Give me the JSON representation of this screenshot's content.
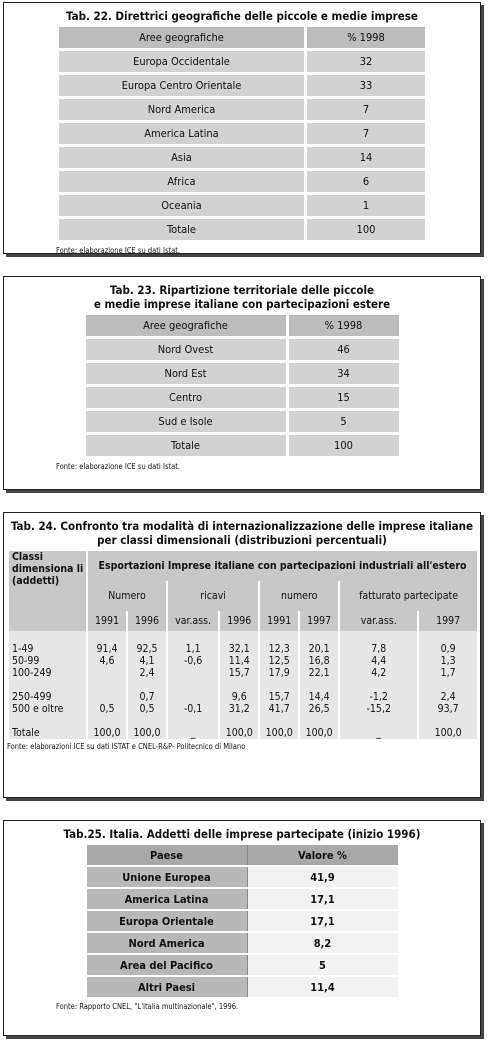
{
  "tab22": {
    "title": "Tab. 22. Direttrici geografiche delle piccole e medie imprese",
    "header": [
      "Aree geografiche",
      "% 1998"
    ],
    "rows": [
      [
        "Europa Occidentale",
        "32"
      ],
      [
        "Europa Centro Orientale",
        "33"
      ],
      [
        "Nord America",
        "7"
      ],
      [
        "America Latina",
        "7"
      ],
      [
        "Asia",
        "14"
      ],
      [
        "Africa",
        "6"
      ],
      [
        "Oceania",
        "1"
      ],
      [
        "Totale",
        "100"
      ]
    ],
    "source": "Fonte: elaborazione ICE su dati Istat."
  },
  "tab23": {
    "title": [
      "Tab. 23. Ripartizione territoriale delle piccole",
      "e medie imprese italiane con partecipazioni estere"
    ],
    "header": [
      "Aree geografiche",
      "% 1998"
    ],
    "rows": [
      [
        "Nord Ovest",
        "46"
      ],
      [
        "Nord Est",
        "34"
      ],
      [
        "Centro",
        "15"
      ],
      [
        "Sud e Isole",
        "5"
      ],
      [
        "Totale",
        "100"
      ]
    ],
    "source": "Fonte: elaborazione ICE su dati Istat."
  },
  "tab24": {
    "title": [
      "Tab. 24. Confronto tra modalità di internazionalizzazione delle imprese italiane",
      "per classi dimensionali (distribuzioni percentuali)"
    ],
    "corner": "Classi dimensiona li (addetti)",
    "group": "Esportazioni Imprese italiane con partecipazioni industriali all'estero",
    "subgroups": [
      "Numero",
      "ricavi",
      "numero",
      "fatturato partecipate"
    ],
    "years": [
      "1991",
      "1996",
      "var.ass.",
      "1996",
      "1991",
      "1997",
      "var.ass.",
      "1997"
    ],
    "rows": [
      [
        "1-49",
        "91,4",
        "92,5",
        "1,1",
        "32,1",
        "12,3",
        "20,1",
        "7,8",
        "0,9"
      ],
      [
        "50-99",
        "4,6",
        "4,1",
        "-0,6",
        "11,4",
        "12,5",
        "16,8",
        "4,4",
        "1,3"
      ],
      [
        "100-249",
        null,
        "2,4",
        null,
        "15,7",
        "17,9",
        "22,1",
        "4,2",
        "1,7"
      ],
      [
        "250-499",
        null,
        "0,7",
        null,
        "9,6",
        "15,7",
        "14,4",
        "-1,2",
        "2,4"
      ],
      [
        "500 e oltre",
        "0,5",
        "0,5",
        "-0,1",
        "31,2",
        "41,7",
        "26,5",
        "-15,2",
        "93,7"
      ],
      [
        "Totale",
        "100,0",
        "100,0",
        "_",
        "100,0",
        "100,0",
        "100,0",
        "_",
        "100,0"
      ]
    ],
    "source": "Fonte: elaborazioni ICE su dati ISTAT e CNEL-R&P- Politecnico di Milano"
  },
  "tab25": {
    "title": "Tab.25. Italia. Addetti delle imprese partecipate (inizio 1996)",
    "header": [
      "Paese",
      "Valore %"
    ],
    "rows": [
      [
        "Unione Europea",
        "41,9"
      ],
      [
        "America Latina",
        "17,1"
      ],
      [
        "Europa Orientale",
        "17,1"
      ],
      [
        "Nord America",
        "8,2"
      ],
      [
        "Area del Pacifico",
        "5"
      ],
      [
        "Altri Paesi",
        "11,4"
      ]
    ],
    "source": "Fonte: Rapporto CNEL, \"L'Italia multinazionale\", 1996."
  }
}
